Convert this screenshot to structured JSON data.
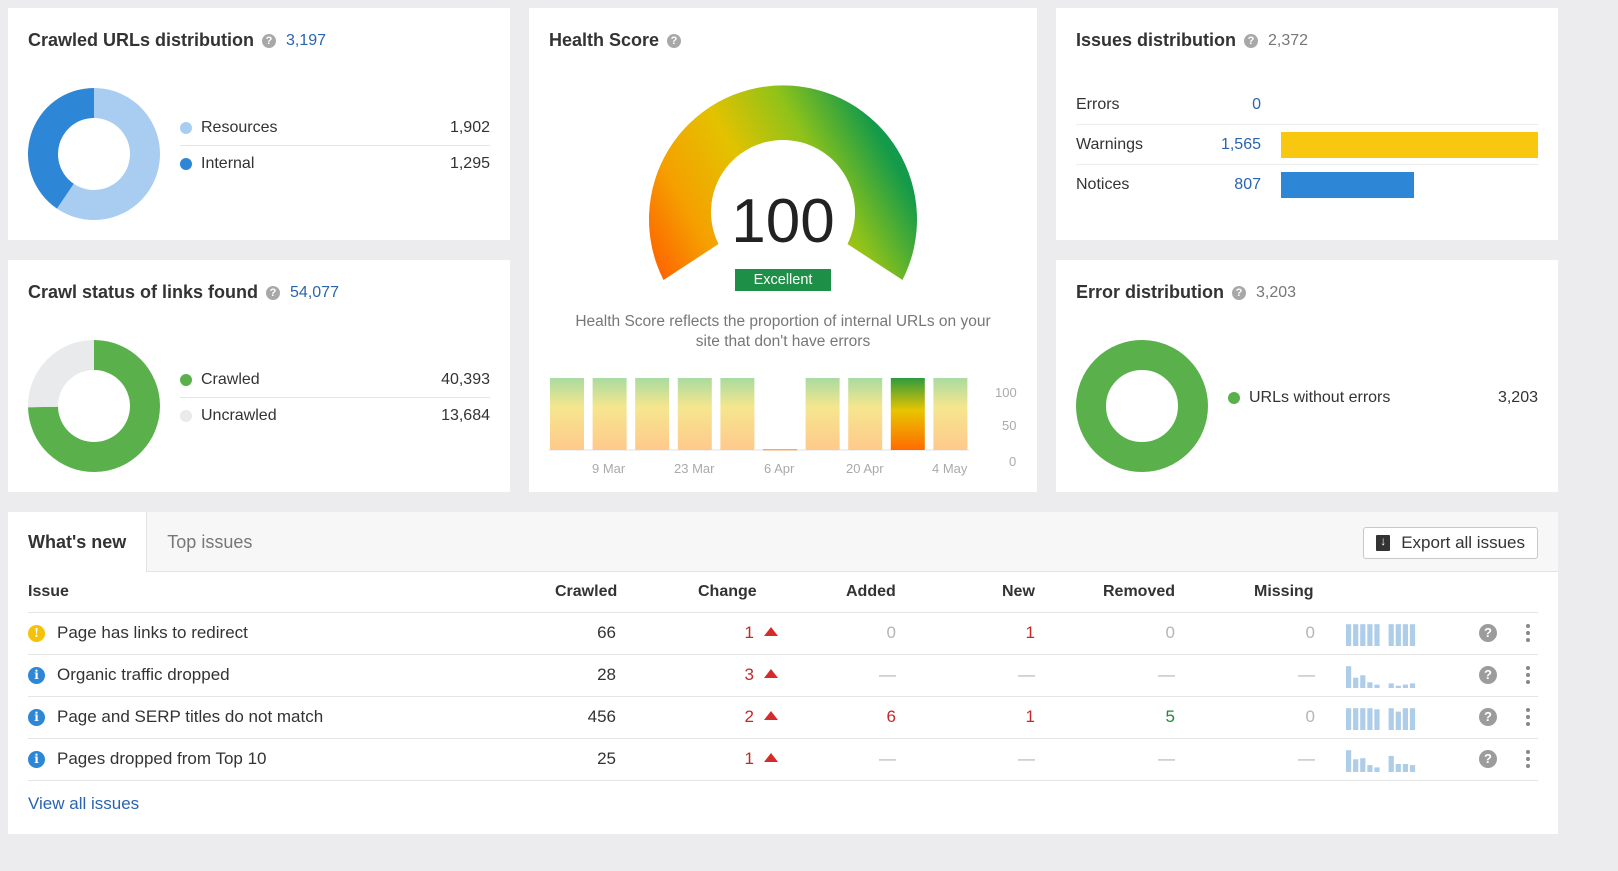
{
  "crawled_urls": {
    "title": "Crawled URLs distribution",
    "total": "3,197",
    "items": [
      {
        "label": "Resources",
        "value": "1,902",
        "amount": 1902,
        "color": "#a9cdf0"
      },
      {
        "label": "Internal",
        "value": "1,295",
        "amount": 1295,
        "color": "#2e86d6"
      }
    ]
  },
  "crawl_status": {
    "title": "Crawl status of links found",
    "total": "54,077",
    "items": [
      {
        "label": "Crawled",
        "value": "40,393",
        "amount": 40393,
        "color": "#5ab14b"
      },
      {
        "label": "Uncrawled",
        "value": "13,684",
        "amount": 13684,
        "color": "#e9eaec"
      }
    ]
  },
  "health_score": {
    "title": "Health Score",
    "score": "100",
    "score_value": 100,
    "badge": "Excellent",
    "description_line1": "Health Score reflects the proportion of internal URLs on your",
    "description_line2": "site that don't have errors",
    "y_ticks": [
      "100",
      "50",
      "0"
    ],
    "x_ticks": [
      "9 Mar",
      "23 Mar",
      "6 Apr",
      "20 Apr",
      "4 May"
    ],
    "history": [
      {
        "value": 100,
        "style": "light"
      },
      {
        "value": 100,
        "style": "light"
      },
      {
        "value": 100,
        "style": "light"
      },
      {
        "value": 100,
        "style": "light"
      },
      {
        "value": 100,
        "style": "light"
      },
      {
        "value": 0,
        "style": "empty"
      },
      {
        "value": 100,
        "style": "light"
      },
      {
        "value": 100,
        "style": "light"
      },
      {
        "value": 100,
        "style": "strong"
      },
      {
        "value": 100,
        "style": "light"
      }
    ]
  },
  "issues_distribution": {
    "title": "Issues distribution",
    "total": "2,372",
    "rows": [
      {
        "label": "Errors",
        "value": "0",
        "amount": 0,
        "color": "#d62b2b"
      },
      {
        "label": "Warnings",
        "value": "1,565",
        "amount": 1565,
        "color": "#f8c811"
      },
      {
        "label": "Notices",
        "value": "807",
        "amount": 807,
        "color": "#2e86d6"
      }
    ]
  },
  "error_distribution": {
    "title": "Error distribution",
    "total": "3,203",
    "items": [
      {
        "label": "URLs without errors",
        "value": "3,203",
        "amount": 3203,
        "color": "#5ab14b"
      }
    ]
  },
  "issues_table": {
    "tabs": [
      {
        "label": "What's new",
        "active": true
      },
      {
        "label": "Top issues",
        "active": false
      }
    ],
    "export_label": "Export all issues",
    "columns": {
      "issue": "Issue",
      "crawled": "Crawled",
      "change": "Change",
      "added": "Added",
      "new": "New",
      "removed": "Removed",
      "missing": "Missing"
    },
    "rows": [
      {
        "status": "warning",
        "status_color": "#f5c20b",
        "status_glyph": "!",
        "issue": "Page has links to redirect",
        "crawled": "66",
        "change": "1",
        "added": "0",
        "added_tone": "muted",
        "new": "1",
        "new_tone": "red",
        "removed": "0",
        "removed_tone": "muted",
        "missing": "0",
        "missing_tone": "muted",
        "spark": [
          0.95,
          0.95,
          0.95,
          0.95,
          0.95,
          0,
          0.95,
          0.95,
          0.95,
          0.95
        ]
      },
      {
        "status": "notice",
        "status_color": "#2e86d6",
        "status_glyph": "i",
        "issue": "Organic traffic dropped",
        "crawled": "28",
        "change": "3",
        "added": "—",
        "added_tone": "muted",
        "new": "—",
        "new_tone": "muted",
        "removed": "—",
        "removed_tone": "muted",
        "missing": "—",
        "missing_tone": "muted",
        "spark": [
          0.95,
          0.45,
          0.55,
          0.25,
          0.15,
          0,
          0.2,
          0.1,
          0.15,
          0.2
        ]
      },
      {
        "status": "notice",
        "status_color": "#2e86d6",
        "status_glyph": "i",
        "issue": "Page and SERP titles do not match",
        "crawled": "456",
        "change": "2",
        "added": "6",
        "added_tone": "red",
        "new": "1",
        "new_tone": "red",
        "removed": "5",
        "removed_tone": "green",
        "missing": "0",
        "missing_tone": "muted",
        "spark": [
          0.95,
          0.95,
          0.95,
          0.95,
          0.9,
          0,
          0.95,
          0.8,
          0.95,
          0.95
        ]
      },
      {
        "status": "notice",
        "status_color": "#2e86d6",
        "status_glyph": "i",
        "issue": "Pages dropped from Top 10",
        "crawled": "25",
        "change": "1",
        "added": "—",
        "added_tone": "muted",
        "new": "—",
        "new_tone": "muted",
        "removed": "—",
        "removed_tone": "muted",
        "missing": "—",
        "missing_tone": "muted",
        "spark": [
          0.95,
          0.55,
          0.6,
          0.3,
          0.2,
          0,
          0.7,
          0.35,
          0.35,
          0.3
        ]
      }
    ],
    "view_all_label": "View all issues"
  }
}
